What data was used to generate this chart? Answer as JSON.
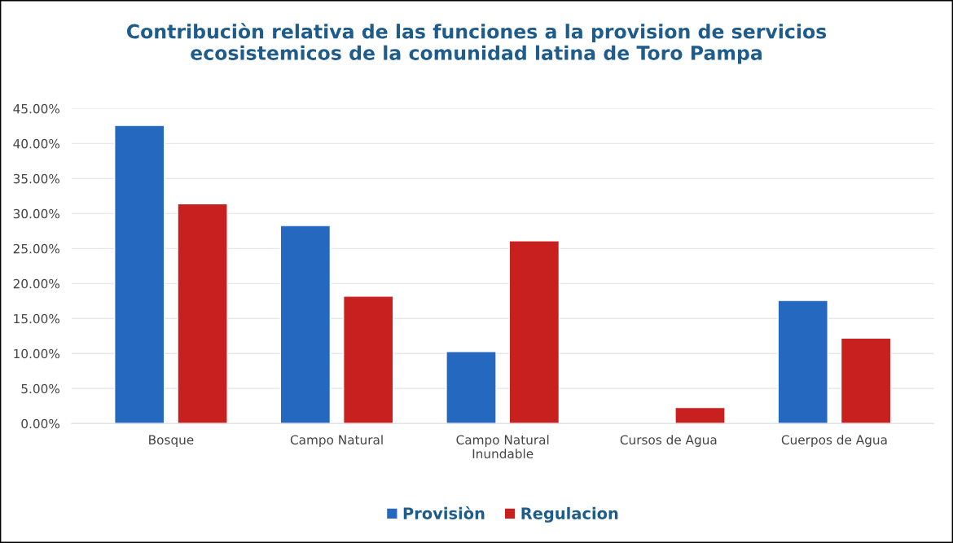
{
  "chart_data": {
    "type": "bar",
    "title": "Contribuciòn relativa de las funciones a la provision de servicios\necosistemicos de la comunidad latina de Toro Pampa",
    "categories": [
      "Bosque",
      "Campo Natural",
      "Campo Natural\nInundable",
      "Cursos de Agua",
      "Cuerpos de Agua"
    ],
    "series": [
      {
        "name": "Provisiòn",
        "color": "#2468c0",
        "values": [
          42.6,
          28.3,
          10.3,
          null,
          17.6
        ]
      },
      {
        "name": "Regulacion",
        "color": "#c8201e",
        "values": [
          31.4,
          18.2,
          26.1,
          2.3,
          12.2
        ]
      }
    ],
    "ylim": [
      0,
      45
    ],
    "yticks": [
      {
        "value": 0,
        "label": "0.00%"
      },
      {
        "value": 5,
        "label": "5.00%"
      },
      {
        "value": 10,
        "label": "10.00%"
      },
      {
        "value": 15,
        "label": "15.00%"
      },
      {
        "value": 20,
        "label": "20.00%"
      },
      {
        "value": 25,
        "label": "25.00%"
      },
      {
        "value": 30,
        "label": "30.00%"
      },
      {
        "value": 35,
        "label": "35.00%"
      },
      {
        "value": 40,
        "label": "40.00%"
      },
      {
        "value": 45,
        "label": "45.00%"
      }
    ],
    "grid": "y",
    "legend": "bottom"
  }
}
